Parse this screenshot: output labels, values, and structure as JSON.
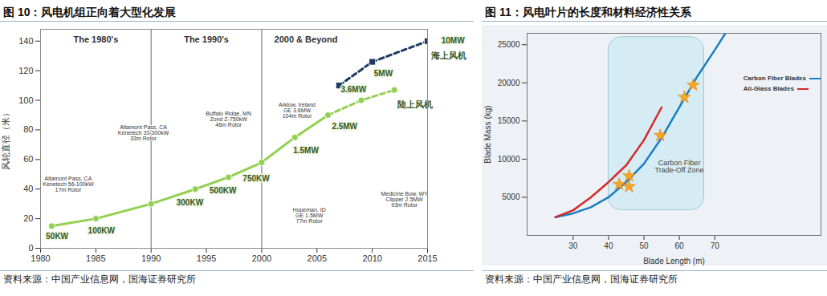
{
  "chart_data": [
    {
      "type": "line",
      "title": "图 10：风电机组正向着大型化发展",
      "source": "资料来源：中国产业信息网，国海证券研究所",
      "ylabel": "风轮直径（米）",
      "xlim": [
        1980,
        2015
      ],
      "xticks": [
        1980,
        1985,
        1990,
        1995,
        2000,
        2005,
        2010,
        2015
      ],
      "ylim": [
        0,
        148
      ],
      "yticks": [
        0,
        20,
        40,
        60,
        80,
        100,
        120,
        140
      ],
      "eras": [
        {
          "text": "The 1980's",
          "x": 1985
        },
        {
          "text": "The 1990's",
          "x": 1995
        },
        {
          "text": "2000 & Beyond",
          "x": 2004
        }
      ],
      "era_dividers": [
        1990,
        2000
      ],
      "series": [
        {
          "color": "#92d050",
          "line_style": "solid",
          "marker": "circle",
          "x": [
            1981,
            1985,
            1990,
            1994,
            1997,
            2000,
            2003,
            2006
          ],
          "values": [
            15,
            20,
            30,
            40,
            48,
            58,
            75,
            90
          ]
        },
        {
          "name": "陆上风机",
          "color": "#92d050",
          "line_style": "dashed",
          "marker": "circle",
          "x": [
            2006,
            2009,
            2012
          ],
          "values": [
            90,
            100,
            107
          ]
        },
        {
          "name": "海上风机",
          "color": "#1f3864",
          "line_style": "dashed",
          "marker": "square",
          "x": [
            2007,
            2010,
            2015
          ],
          "values": [
            110,
            126,
            140
          ]
        }
      ],
      "annotations": [
        {
          "text": "50KW",
          "x": 1981.5,
          "y": 8
        },
        {
          "text": "100KW",
          "x": 1985.5,
          "y": 12
        },
        {
          "text": "300KW",
          "x": 1993.5,
          "y": 31
        },
        {
          "text": "500KW",
          "x": 1996.5,
          "y": 39
        },
        {
          "text": "750KW",
          "x": 1999.5,
          "y": 47
        },
        {
          "text": "1.5MW",
          "x": 2004,
          "y": 66
        },
        {
          "text": "2.5MW",
          "x": 2007.5,
          "y": 82
        },
        {
          "text": "3.6MW",
          "x": 2008.3,
          "y": 107
        },
        {
          "text": "5MW",
          "x": 2011,
          "y": 118
        },
        {
          "text": "10MW",
          "x": 2017.3,
          "y": 140
        }
      ],
      "photo_captions": [
        {
          "text": "Altamont Pass, CA\nKenetech 56-100kW\n17m Rotor",
          "x": 1982.5,
          "y": 43
        },
        {
          "text": "Altamont Pass, CA\nKenetech 33-300kW\n33m Rotor",
          "x": 1989.3,
          "y": 78
        },
        {
          "text": "Buffalo Ridge, MN\nZond Z-750kW\n46m Rotor",
          "x": 1997,
          "y": 87
        },
        {
          "text": "Arklow, Ireland\nGE 3.6MW\n104m Rotor",
          "x": 2003.2,
          "y": 93
        },
        {
          "text": "Hopeman, ID\nGE 1.5MW\n77m Rotor",
          "x": 2004.3,
          "y": 22
        },
        {
          "text": "Medicine Bow, WY\nClipper 2.5MW\n93m Rotor",
          "x": 2012.9,
          "y": 33
        }
      ]
    },
    {
      "type": "line",
      "title": "图 11：风电叶片的长度和材料经济性关系",
      "source": "资料来源：中国产业信息网，国海证券研究所",
      "xlabel": "Blade Length (m)",
      "ylabel": "Blade Mass (kg)",
      "xlim": [
        17,
        100
      ],
      "xticks": [
        30,
        40,
        50,
        60,
        70
      ],
      "ylim": [
        0,
        26500
      ],
      "yticks": [
        5000,
        10000,
        15000,
        20000,
        25000
      ],
      "legend": "top-right",
      "series": [
        {
          "name": "Carbon Fiber Blades",
          "color": "#1a7dc4",
          "x": [
            25,
            30,
            35,
            40,
            45,
            50,
            55,
            60,
            65,
            70,
            73
          ],
          "values": [
            2400,
            2900,
            3700,
            5000,
            7000,
            9400,
            12800,
            16800,
            20800,
            24300,
            26500
          ]
        },
        {
          "name": "All-Glass Blades",
          "color": "#d42a2a",
          "x": [
            25,
            30,
            35,
            40,
            45,
            50,
            55
          ],
          "values": [
            2400,
            3300,
            5000,
            7000,
            9200,
            12500,
            16800
          ]
        }
      ],
      "points": {
        "marker": "star",
        "color": "#f5a623",
        "x": [
          43,
          45.8,
          45.8,
          54.6,
          61.4,
          63.9
        ],
        "y": [
          6700,
          6400,
          7800,
          13100,
          18100,
          19700
        ]
      },
      "zone": {
        "label": "Carbon Fiber\nTrade-Off Zone",
        "x": [
          40,
          67
        ],
        "y": [
          3300,
          26000
        ],
        "label_at": [
          60,
          9000
        ]
      }
    }
  ]
}
